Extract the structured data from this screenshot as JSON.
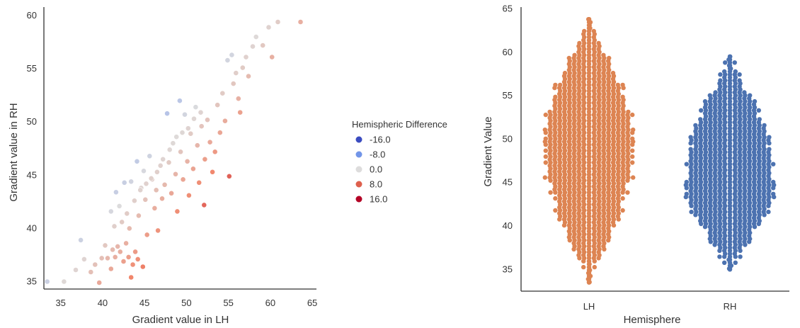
{
  "chart_data": [
    {
      "type": "scatter",
      "xlabel": "Gradient value in LH",
      "ylabel": "Gradient value in RH",
      "xlim": [
        33,
        65.5
      ],
      "ylim": [
        34.3,
        60.8
      ],
      "xticks": [
        "35",
        "40",
        "45",
        "50",
        "55",
        "60",
        "65"
      ],
      "yticks": [
        "35",
        "40",
        "45",
        "50",
        "55",
        "60"
      ],
      "grid": false,
      "legend": {
        "title": "Hemispheric Difference",
        "placement": "right",
        "entries": [
          {
            "label": "-16.0",
            "value": -16,
            "color": "#3b4cc0"
          },
          {
            "label": "-8.0",
            "value": -8,
            "color": "#7295e8"
          },
          {
            "label": "0.0",
            "value": 0,
            "color": "#dddcdc"
          },
          {
            "label": "8.0",
            "value": 8,
            "color": "#de604d"
          },
          {
            "label": "16.0",
            "value": 16,
            "color": "#b40426"
          }
        ]
      },
      "colormap": "coolwarm",
      "color_encoding": "difference = LH - RH",
      "points": [
        [
          33.4,
          35.0
        ],
        [
          35.4,
          35.0
        ],
        [
          36.8,
          36.1
        ],
        [
          37.4,
          38.9
        ],
        [
          37.8,
          37.1
        ],
        [
          38.6,
          35.9
        ],
        [
          39.1,
          36.6
        ],
        [
          39.6,
          34.9
        ],
        [
          39.9,
          37.2
        ],
        [
          40.3,
          38.4
        ],
        [
          40.6,
          37.2
        ],
        [
          41.0,
          36.2
        ],
        [
          41.2,
          38.0
        ],
        [
          41.5,
          37.3
        ],
        [
          41.8,
          38.3
        ],
        [
          42.1,
          37.8
        ],
        [
          42.5,
          36.9
        ],
        [
          42.8,
          38.6
        ],
        [
          43.1,
          37.3
        ],
        [
          43.4,
          35.4
        ],
        [
          43.6,
          36.6
        ],
        [
          43.9,
          37.8
        ],
        [
          44.2,
          37.1
        ],
        [
          44.8,
          36.4
        ],
        [
          41.0,
          41.6
        ],
        [
          41.4,
          40.2
        ],
        [
          41.6,
          43.4
        ],
        [
          42.0,
          42.1
        ],
        [
          42.3,
          40.6
        ],
        [
          42.6,
          44.3
        ],
        [
          42.9,
          41.4
        ],
        [
          43.2,
          40.0
        ],
        [
          43.4,
          44.4
        ],
        [
          43.8,
          42.6
        ],
        [
          44.1,
          46.3
        ],
        [
          44.3,
          41.2
        ],
        [
          44.6,
          43.8
        ],
        [
          44.9,
          45.4
        ],
        [
          45.1,
          42.7
        ],
        [
          45.3,
          39.4
        ],
        [
          45.6,
          46.8
        ],
        [
          45.9,
          44.6
        ],
        [
          46.2,
          41.9
        ],
        [
          46.4,
          43.6
        ],
        [
          46.6,
          39.8
        ],
        [
          46.9,
          45.9
        ],
        [
          47.1,
          42.8
        ],
        [
          47.4,
          44.1
        ],
        [
          47.7,
          50.8
        ],
        [
          47.9,
          46.2
        ],
        [
          48.2,
          43.3
        ],
        [
          48.4,
          48.0
        ],
        [
          48.7,
          45.1
        ],
        [
          48.9,
          41.6
        ],
        [
          49.2,
          52.0
        ],
        [
          49.3,
          47.2
        ],
        [
          49.6,
          44.6
        ],
        [
          49.8,
          50.7
        ],
        [
          50.1,
          46.3
        ],
        [
          50.3,
          43.1
        ],
        [
          50.5,
          48.9
        ],
        [
          50.8,
          45.6
        ],
        [
          51.1,
          51.4
        ],
        [
          51.3,
          47.8
        ],
        [
          51.5,
          44.3
        ],
        [
          51.8,
          49.6
        ],
        [
          52.1,
          42.2
        ],
        [
          52.2,
          46.5
        ],
        [
          52.5,
          50.2
        ],
        [
          52.8,
          48.1
        ],
        [
          53.1,
          45.3
        ],
        [
          53.4,
          47.2
        ],
        [
          53.7,
          51.6
        ],
        [
          54.0,
          49.0
        ],
        [
          54.3,
          52.7
        ],
        [
          54.6,
          50.1
        ],
        [
          54.9,
          55.8
        ],
        [
          55.1,
          44.9
        ],
        [
          55.4,
          56.3
        ],
        [
          55.6,
          53.6
        ],
        [
          55.9,
          54.6
        ],
        [
          56.2,
          52.2
        ],
        [
          56.4,
          50.9
        ],
        [
          56.7,
          55.1
        ],
        [
          57.1,
          56.1
        ],
        [
          57.4,
          54.3
        ],
        [
          57.9,
          57.1
        ],
        [
          58.3,
          58.0
        ],
        [
          59.1,
          57.2
        ],
        [
          59.8,
          58.9
        ],
        [
          60.2,
          56.1
        ],
        [
          60.9,
          59.4
        ],
        [
          63.6,
          59.4
        ],
        [
          45.8,
          44.7
        ],
        [
          46.5,
          45.3
        ],
        [
          47.2,
          46.5
        ],
        [
          48.0,
          47.4
        ],
        [
          48.8,
          48.6
        ],
        [
          49.5,
          49.0
        ],
        [
          50.2,
          49.4
        ],
        [
          50.9,
          50.3
        ],
        [
          51.7,
          50.9
        ],
        [
          44.5,
          43.6
        ],
        [
          45.2,
          44.2
        ]
      ]
    },
    {
      "type": "swarm",
      "xlabel": "Hemisphere",
      "ylabel": "Gradient Value",
      "categories": [
        "LH",
        "RH"
      ],
      "ylim": [
        32.5,
        65.2
      ],
      "yticks": [
        "35",
        "40",
        "45",
        "50",
        "55",
        "60",
        "65"
      ],
      "grid": false,
      "series": [
        {
          "name": "LH",
          "color": "#dd8452",
          "min": 33.5,
          "max": 63.8,
          "center": 49
        },
        {
          "name": "RH",
          "color": "#4c72b0",
          "min": 35.0,
          "max": 59.5,
          "center": 45.5
        }
      ]
    }
  ]
}
